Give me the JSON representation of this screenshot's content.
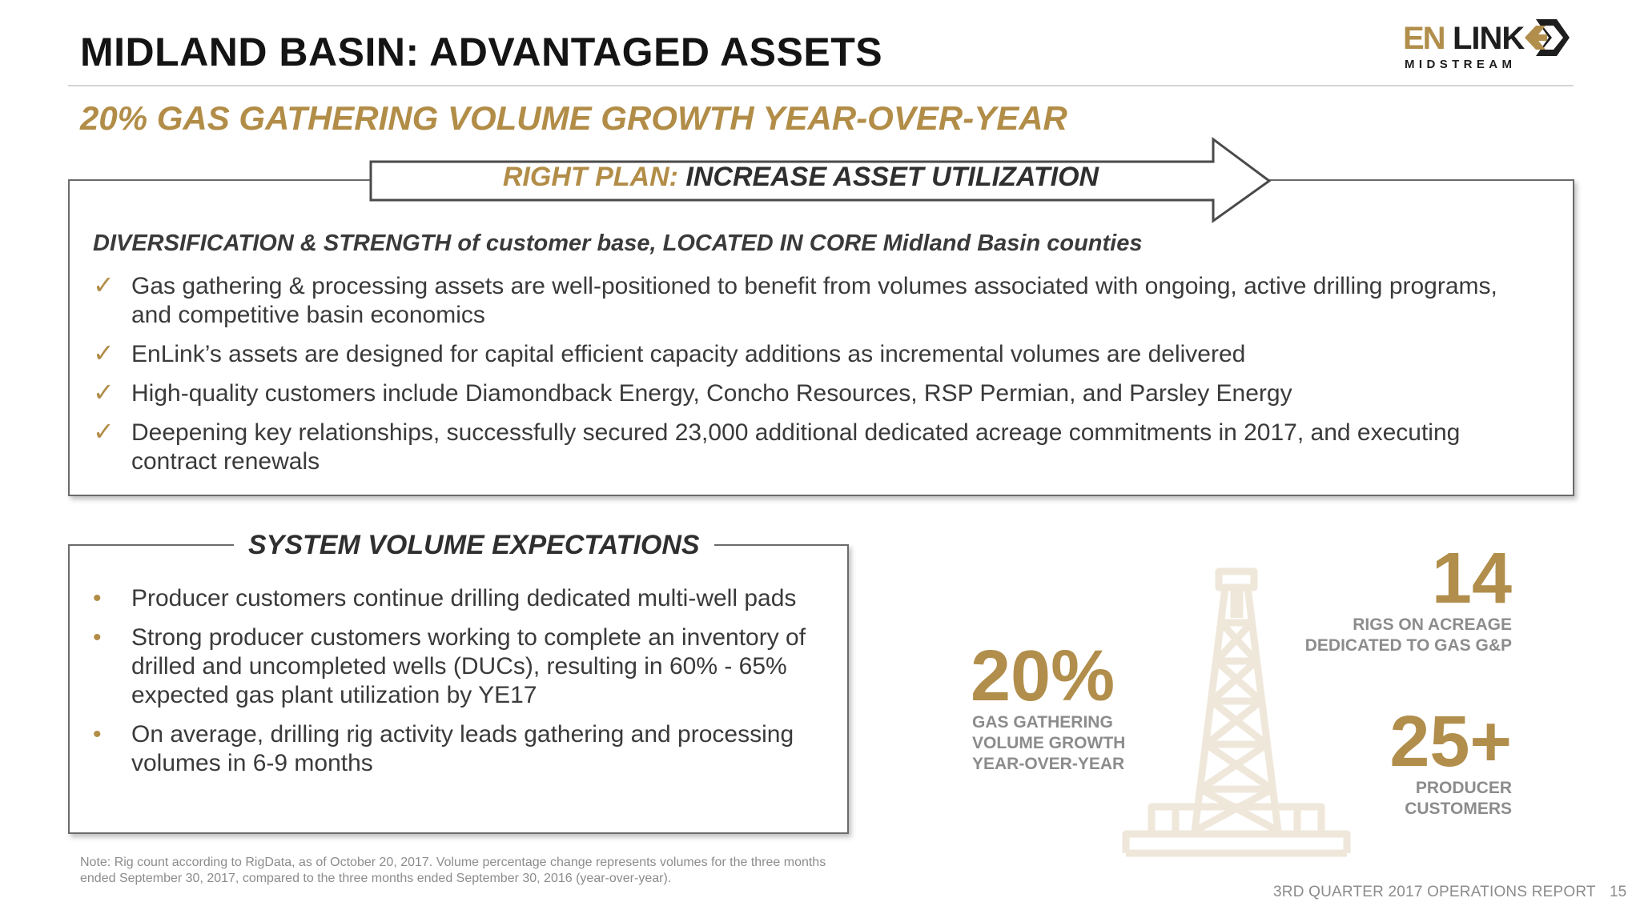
{
  "header": {
    "title": "MIDLAND BASIN: ADVANTAGED ASSETS",
    "logo": {
      "en": "EN",
      "link": "LINK",
      "sub": "MIDSTREAM",
      "brand_gold": "#b18e4b",
      "brand_dark": "#1e1e1e"
    }
  },
  "subtitle": "20% GAS GATHERING VOLUME GROWTH YEAR-OVER-YEAR",
  "plan": {
    "label_gold": "RIGHT PLAN:",
    "label_dark": "INCREASE ASSET UTILIZATION",
    "heading": "DIVERSIFICATION & STRENGTH of customer base, LOCATED IN CORE Midland Basin counties",
    "items": [
      "Gas gathering & processing assets are well-positioned to benefit from volumes associated with ongoing, active drilling programs, and competitive basin economics",
      "EnLink’s assets are designed for capital efficient capacity additions as incremental volumes are delivered",
      "High-quality customers include Diamondback Energy, Concho Resources, RSP Permian, and Parsley Energy",
      "Deepening key relationships, successfully secured 23,000 additional dedicated acreage commitments in 2017, and executing contract renewals"
    ]
  },
  "system": {
    "heading": "SYSTEM VOLUME EXPECTATIONS",
    "items": [
      "Producer customers continue drilling dedicated multi-well pads",
      "Strong producer customers working to complete an inventory of drilled and uncompleted wells (DUCs), resulting in 60% - 65% expected gas plant utilization by YE17",
      "On average, drilling rig activity leads gathering and processing volumes in 6-9 months"
    ]
  },
  "stats": {
    "rigs": {
      "value": "14",
      "label_1": "RIGS ON ACREAGE",
      "label_2": "DEDICATED TO GAS G&P"
    },
    "growth": {
      "value": "20%",
      "label_1": "GAS GATHERING",
      "label_2": "VOLUME GROWTH",
      "label_3": "YEAR-OVER-YEAR"
    },
    "producers": {
      "value": "25+",
      "label_1": "PRODUCER",
      "label_2": "CUSTOMERS"
    }
  },
  "note": "Note: Rig count according to RigData, as of October 20, 2017.  Volume percentage change represents volumes for the three months ended September 30, 2017, compared to the three months ended September 30, 2016 (year-over-year).",
  "footer": {
    "report": "3RD QUARTER 2017 OPERATIONS REPORT",
    "page": "15"
  },
  "icons": {
    "check": "checkmark-icon",
    "bullet": "bullet-dot-icon",
    "rig": "oil-rig-icon"
  },
  "colors": {
    "accent_gold": "#b28d48",
    "text": "#3a3a3a",
    "muted": "#8c8c8c"
  }
}
